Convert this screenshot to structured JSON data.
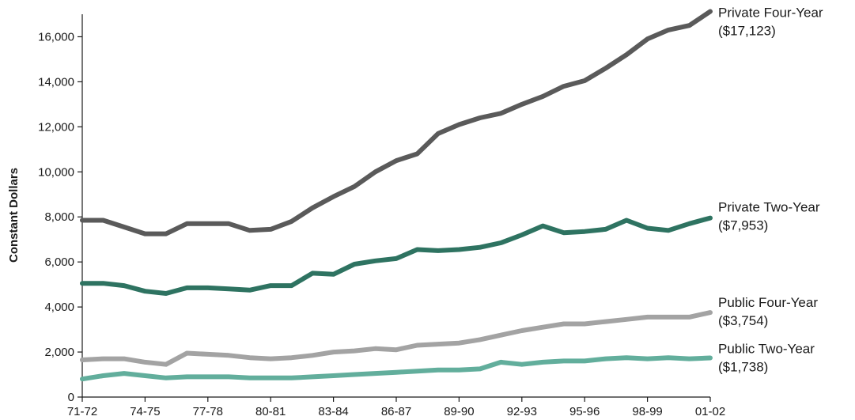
{
  "chart_data": {
    "type": "line",
    "title": "",
    "xlabel": "",
    "ylabel": "Constant Dollars",
    "ylim": [
      0,
      17000
    ],
    "yticks": [
      0,
      2000,
      4000,
      6000,
      8000,
      10000,
      12000,
      14000,
      16000
    ],
    "ytick_labels": [
      "0",
      "2,000",
      "4,000",
      "6,000",
      "8,000",
      "10,000",
      "12,000",
      "14,000",
      "16,000"
    ],
    "xtick_labels": [
      "71-72",
      "74-75",
      "77-78",
      "80-81",
      "83-84",
      "86-87",
      "89-90",
      "92-93",
      "95-96",
      "98-99",
      "01-02"
    ],
    "x": [
      "71-72",
      "72-73",
      "73-74",
      "74-75",
      "75-76",
      "76-77",
      "77-78",
      "78-79",
      "79-80",
      "80-81",
      "81-82",
      "82-83",
      "83-84",
      "84-85",
      "85-86",
      "86-87",
      "87-88",
      "88-89",
      "89-90",
      "90-91",
      "91-92",
      "92-93",
      "93-94",
      "94-95",
      "95-96",
      "96-97",
      "97-98",
      "98-99",
      "99-00",
      "00-01",
      "01-02"
    ],
    "grid": false,
    "legend": "none",
    "series": [
      {
        "name": "Private Four-Year",
        "label_lines": [
          "Private Four-Year",
          "($17,123)"
        ],
        "color": "#5a5a5a",
        "values": [
          7850,
          7850,
          7550,
          7250,
          7250,
          7700,
          7700,
          7700,
          7400,
          7450,
          7800,
          8400,
          8900,
          9350,
          10000,
          10500,
          10800,
          11700,
          12100,
          12400,
          12600,
          13000,
          13350,
          13800,
          14050,
          14600,
          15200,
          15900,
          16300,
          16500,
          17123
        ]
      },
      {
        "name": "Private Two-Year",
        "label_lines": [
          "Private Two-Year",
          "($7,953)"
        ],
        "color": "#2e7361",
        "values": [
          5050,
          5050,
          4950,
          4700,
          4600,
          4850,
          4850,
          4800,
          4750,
          4950,
          4950,
          5500,
          5450,
          5900,
          6050,
          6150,
          6550,
          6500,
          6550,
          6650,
          6850,
          7200,
          7600,
          7300,
          7350,
          7450,
          7850,
          7500,
          7400,
          7700,
          7953
        ]
      },
      {
        "name": "Public Four-Year",
        "label_lines": [
          "Public Four-Year",
          "($3,754)"
        ],
        "color": "#a3a3a3",
        "values": [
          1650,
          1700,
          1700,
          1550,
          1450,
          1950,
          1900,
          1850,
          1750,
          1700,
          1750,
          1850,
          2000,
          2050,
          2150,
          2100,
          2300,
          2350,
          2400,
          2550,
          2750,
          2950,
          3100,
          3250,
          3250,
          3350,
          3450,
          3550,
          3550,
          3550,
          3754
        ]
      },
      {
        "name": "Public Two-Year",
        "label_lines": [
          "Public Two-Year",
          "($1,738)"
        ],
        "color": "#62ae9c",
        "values": [
          800,
          950,
          1050,
          950,
          850,
          900,
          900,
          900,
          850,
          850,
          850,
          900,
          950,
          1000,
          1050,
          1100,
          1150,
          1200,
          1200,
          1250,
          1550,
          1450,
          1550,
          1600,
          1600,
          1700,
          1750,
          1700,
          1750,
          1700,
          1738
        ]
      }
    ]
  }
}
